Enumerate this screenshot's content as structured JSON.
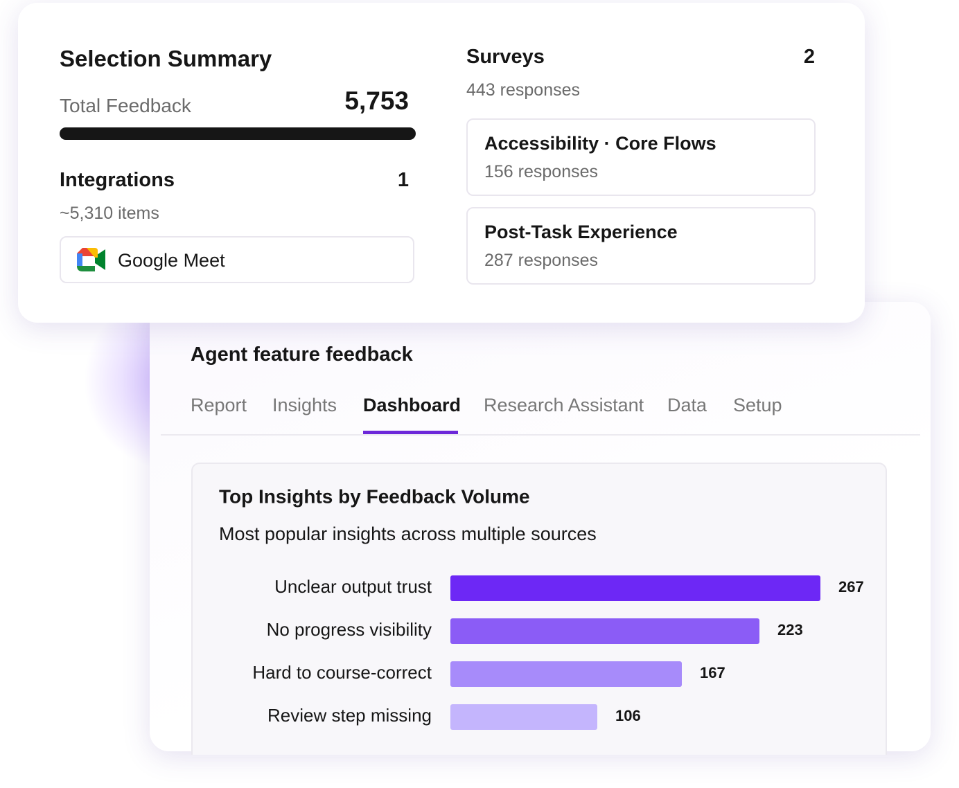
{
  "summary": {
    "title": "Selection Summary",
    "total_label": "Total Feedback",
    "total_value": "5,753",
    "integrations": {
      "label": "Integrations",
      "count": "1",
      "items": "~5,310 items",
      "list": [
        "Google Meet"
      ]
    },
    "surveys": {
      "label": "Surveys",
      "count": "2",
      "responses": "443 responses",
      "list": [
        {
          "name": "Accessibility · Core Flows",
          "responses": "156 responses"
        },
        {
          "name": "Post-Task Experience",
          "responses": "287 responses"
        }
      ]
    }
  },
  "dashboard": {
    "title": "Agent feature feedback",
    "tabs": [
      "Report",
      "Insights",
      "Dashboard",
      "Research Assistant",
      "Data",
      "Setup"
    ],
    "active_tab": 2
  },
  "chart_data": {
    "type": "bar",
    "orientation": "horizontal",
    "title": "Top Insights by Feedback Volume",
    "subtitle": "Most popular insights across multiple sources",
    "categories": [
      "Unclear output trust",
      "No progress visibility",
      "Hard to course-correct",
      "Review step missing"
    ],
    "values": [
      267,
      223,
      167,
      106
    ],
    "colors": [
      "#6d28f5",
      "#8b5cf6",
      "#a78bfa",
      "#c4b5fd"
    ]
  }
}
